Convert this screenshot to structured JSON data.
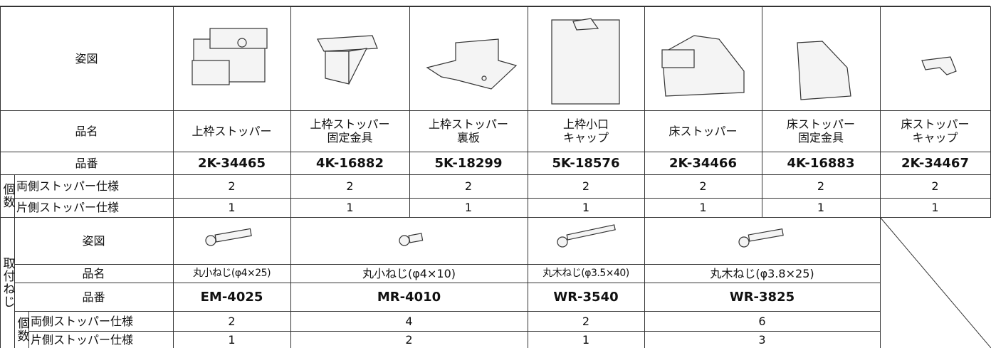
{
  "parts": {
    "header": {
      "figure": "姿図",
      "name": "品名",
      "number": "品番",
      "count": "個数",
      "both": "両側ストッパー仕様",
      "single": "片側ストッパー仕様"
    },
    "items": [
      {
        "name": [
          "上枠ストッパー"
        ],
        "number": "2K-34465",
        "both": 2,
        "single": 1
      },
      {
        "name": [
          "上枠ストッパー",
          "固定金具"
        ],
        "number": "4K-16882",
        "both": 2,
        "single": 1
      },
      {
        "name": [
          "上枠ストッパー",
          "裏板"
        ],
        "number": "5K-18299",
        "both": 2,
        "single": 1
      },
      {
        "name": [
          "上枠小口",
          "キャップ"
        ],
        "number": "5K-18576",
        "both": 2,
        "single": 1
      },
      {
        "name": [
          "床ストッパー"
        ],
        "number": "2K-34466",
        "both": 2,
        "single": 1
      },
      {
        "name": [
          "床ストッパー",
          "固定金具"
        ],
        "number": "4K-16883",
        "both": 2,
        "single": 1
      },
      {
        "name": [
          "床ストッパー",
          "キャップ"
        ],
        "number": "2K-34467",
        "both": 2,
        "single": 1
      }
    ]
  },
  "screws": {
    "title": "取付ねじ",
    "header": {
      "figure": "姿図",
      "name": "品名",
      "number": "品番",
      "count": "個数",
      "both": "両側ストッパー仕様",
      "single": "片側ストッパー仕様"
    },
    "items": [
      {
        "name": "丸小ねじ(φ4×25)",
        "number": "EM-4025",
        "both": 2,
        "single": 1
      },
      {
        "name": "丸小ねじ(φ4×10)",
        "number": "MR-4010",
        "both": 4,
        "single": 2
      },
      {
        "name": "丸木ねじ(φ3.5×40)",
        "number": "WR-3540",
        "both": 2,
        "single": 1
      },
      {
        "name": "丸木ねじ(φ3.8×25)",
        "number": "WR-3825",
        "both": 6,
        "single": 3
      }
    ]
  }
}
